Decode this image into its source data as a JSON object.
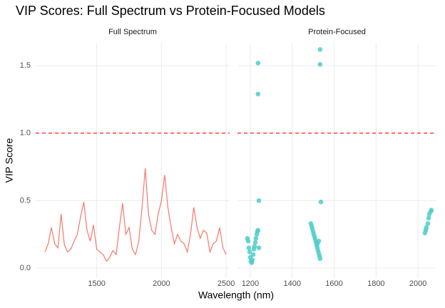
{
  "chart_data": {
    "title": "VIP Scores: Full Spectrum vs Protein-Focused Models",
    "xlabel": "Wavelength (nm)",
    "ylabel": "VIP Score",
    "ylim": [
      -0.074,
      1.67
    ],
    "yticks": [
      {
        "value": 0,
        "label": "0.0"
      },
      {
        "value": 0.5,
        "label": "0.5"
      },
      {
        "value": 1,
        "label": "1.0"
      },
      {
        "value": 1.5,
        "label": "1.5"
      }
    ],
    "hline": 1,
    "hline_color": "#ff2020",
    "grid": true,
    "panels": [
      {
        "type": "line",
        "title": "Full Spectrum",
        "color": "#F8766D",
        "xlim": [
          1028,
          2527
        ],
        "xticks": [
          1500,
          2000,
          2500
        ],
        "x": [
          1100,
          1125,
          1150,
          1175,
          1200,
          1225,
          1250,
          1275,
          1300,
          1325,
          1350,
          1375,
          1400,
          1425,
          1450,
          1475,
          1500,
          1525,
          1550,
          1575,
          1600,
          1625,
          1650,
          1675,
          1700,
          1725,
          1750,
          1775,
          1800,
          1825,
          1850,
          1875,
          1900,
          1925,
          1950,
          1975,
          2000,
          2025,
          2050,
          2075,
          2100,
          2125,
          2150,
          2175,
          2200,
          2225,
          2250,
          2275,
          2300,
          2325,
          2350,
          2375,
          2400,
          2425,
          2450,
          2475,
          2500
        ],
        "values": [
          0.12,
          0.18,
          0.3,
          0.18,
          0.15,
          0.4,
          0.17,
          0.12,
          0.14,
          0.2,
          0.25,
          0.38,
          0.49,
          0.28,
          0.2,
          0.32,
          0.14,
          0.12,
          0.1,
          0.05,
          0.08,
          0.13,
          0.1,
          0.3,
          0.48,
          0.25,
          0.3,
          0.14,
          0.1,
          0.2,
          0.45,
          0.74,
          0.4,
          0.28,
          0.25,
          0.4,
          0.5,
          0.69,
          0.45,
          0.3,
          0.18,
          0.25,
          0.2,
          0.18,
          0.12,
          0.25,
          0.45,
          0.3,
          0.22,
          0.28,
          0.26,
          0.12,
          0.18,
          0.2,
          0.3,
          0.15,
          0.1
        ]
      },
      {
        "type": "scatter",
        "title": "Protein-Focused",
        "color": "#4fcdc8",
        "xlim": [
          1139,
          2088
        ],
        "xticks": [
          1200,
          1400,
          1600,
          1800,
          2000
        ],
        "x": [
          1186,
          1190,
          1193,
          1197,
          1200,
          1203,
          1207,
          1210,
          1214,
          1217,
          1220,
          1224,
          1227,
          1231,
          1234,
          1237,
          1241,
          1237,
          1237,
          1241,
          1489,
          1493,
          1496,
          1500,
          1503,
          1507,
          1510,
          1514,
          1517,
          1520,
          1523,
          1527,
          1530,
          1533,
          1527,
          1520,
          1533,
          1533,
          1537,
          2033,
          2037,
          2040,
          2047,
          2051,
          2054,
          2061,
          2064
        ],
        "values": [
          0.22,
          0.2,
          0.15,
          0.12,
          0.08,
          0.05,
          0.04,
          0.06,
          0.1,
          0.14,
          0.16,
          0.19,
          0.22,
          0.25,
          0.27,
          0.28,
          0.15,
          1.52,
          1.29,
          0.5,
          0.33,
          0.31,
          0.29,
          0.27,
          0.25,
          0.23,
          0.21,
          0.19,
          0.17,
          0.15,
          0.13,
          0.11,
          0.09,
          0.07,
          0.2,
          0.18,
          1.62,
          1.51,
          0.49,
          0.26,
          0.28,
          0.3,
          0.33,
          0.37,
          0.4,
          0.42,
          0.43
        ]
      }
    ]
  }
}
